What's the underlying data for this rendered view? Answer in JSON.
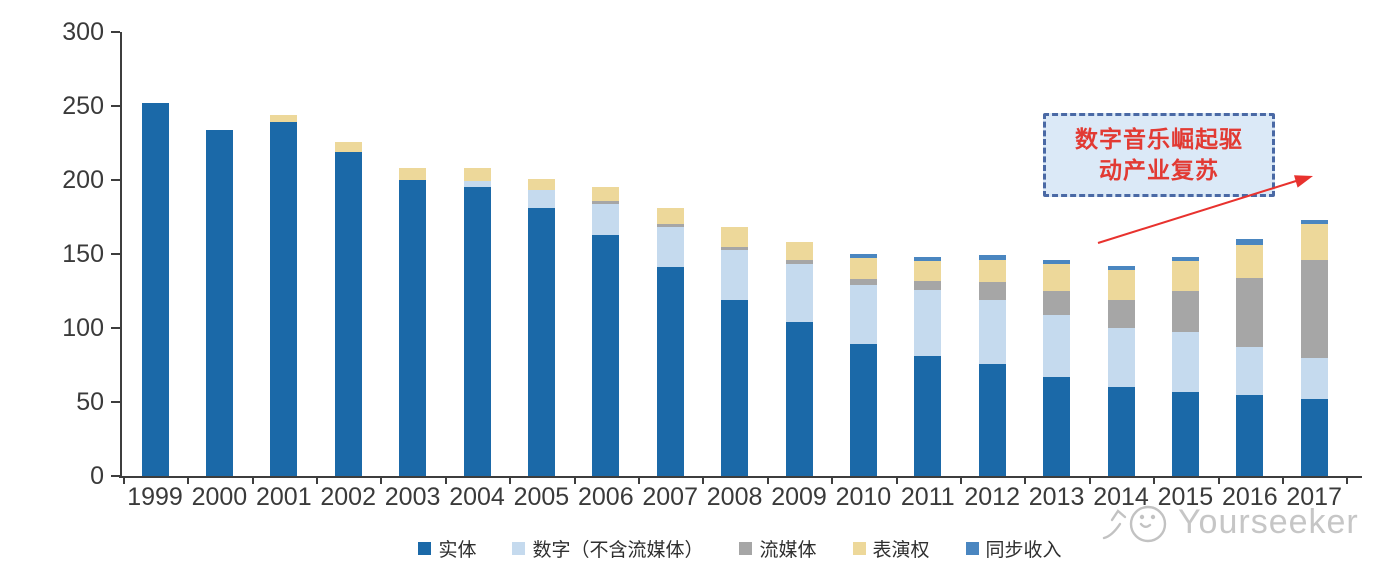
{
  "chart_data": {
    "type": "bar",
    "stacked": true,
    "title": "",
    "xlabel": "",
    "ylabel": "",
    "categories": [
      "1999",
      "2000",
      "2001",
      "2002",
      "2003",
      "2004",
      "2005",
      "2006",
      "2007",
      "2008",
      "2009",
      "2010",
      "2011",
      "2012",
      "2013",
      "2014",
      "2015",
      "2016",
      "2017"
    ],
    "series": [
      {
        "name": "实体",
        "color": "#1b69a8",
        "values": [
          252,
          234,
          239,
          219,
          200,
          195,
          181,
          163,
          141,
          119,
          104,
          89,
          81,
          76,
          67,
          60,
          57,
          55,
          52
        ]
      },
      {
        "name": "数字（不含流媒体）",
        "color": "#c5daee",
        "values": [
          0,
          0,
          0,
          0,
          0,
          4,
          12,
          21,
          27,
          34,
          39,
          40,
          45,
          43,
          42,
          40,
          40,
          32,
          28
        ]
      },
      {
        "name": "流媒体",
        "color": "#a6a6a6",
        "values": [
          0,
          0,
          0,
          0,
          0,
          0,
          0,
          2,
          2,
          2,
          3,
          4,
          6,
          12,
          16,
          19,
          28,
          47,
          66
        ]
      },
      {
        "name": "表演权",
        "color": "#edd89a",
        "values": [
          0,
          0,
          5,
          7,
          8,
          9,
          8,
          9,
          11,
          13,
          12,
          14,
          13,
          15,
          18,
          20,
          20,
          22,
          24
        ]
      },
      {
        "name": "同步收入",
        "color": "#4a86c0",
        "values": [
          0,
          0,
          0,
          0,
          0,
          0,
          0,
          0,
          0,
          0,
          0,
          3,
          3,
          3,
          3,
          3,
          3,
          4,
          3
        ]
      }
    ],
    "ylim": [
      0,
      300
    ],
    "yticks": [
      0,
      50,
      100,
      150,
      200,
      250,
      300
    ],
    "grid": false,
    "legend_position": "bottom"
  },
  "annotation": {
    "lines": [
      "数字音乐崛起驱",
      "动产业复苏"
    ],
    "text_color": "#e23a33",
    "box_fill": "#dbe9f7",
    "box_border": "#4a69a5",
    "arrow_color": "#e8322e"
  },
  "watermark": {
    "text": "Yourseeker",
    "color": "#c6c6c6"
  }
}
